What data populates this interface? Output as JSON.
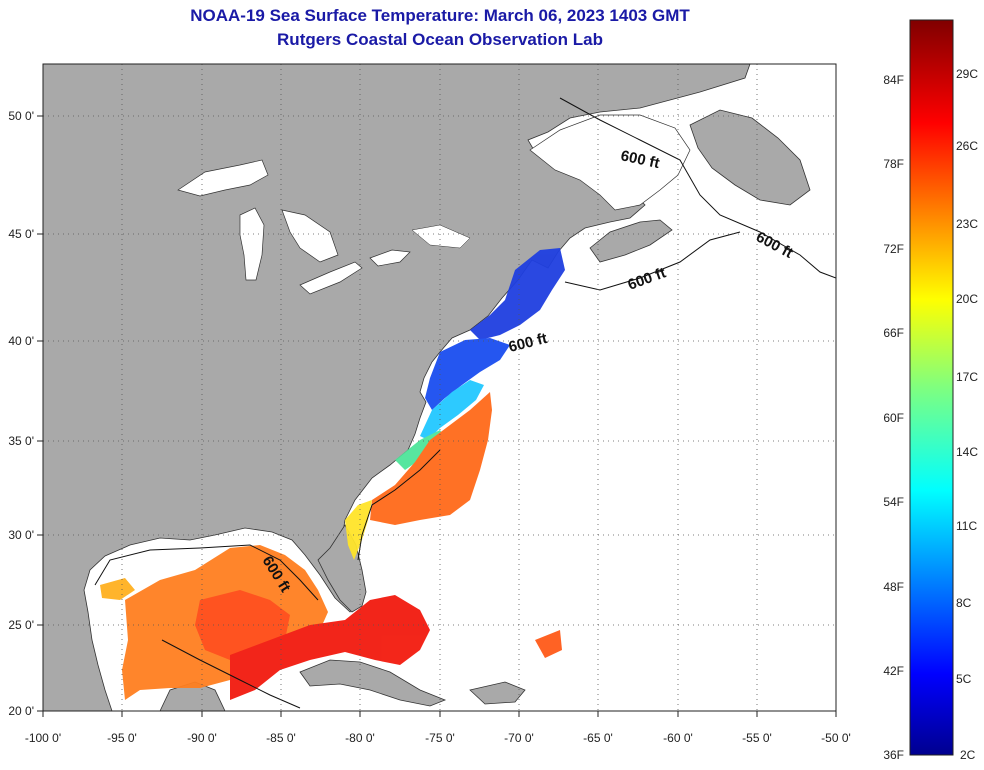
{
  "title": "NOAA-19 Sea Surface Temperature:  March 06, 2023 1403 GMT",
  "subtitle": "Rutgers Coastal Ocean Observation Lab",
  "colors": {
    "land": "#a9a9a9",
    "water": "#ffffff",
    "title": "#1a1aa6"
  },
  "map": {
    "lon_range": [
      -100,
      -50
    ],
    "lat_range": [
      20,
      52
    ],
    "lon_labels": [
      "-100 0'",
      "-95 0'",
      "-90 0'",
      "-85 0'",
      "-80 0'",
      "-75 0'",
      "-70 0'",
      "-65 0'",
      "-60 0'",
      "-55 0'",
      "-50 0'"
    ],
    "lat_labels": [
      "20 0'",
      "25 0'",
      "30 0'",
      "35 0'",
      "40 0'",
      "45 0'",
      "50 0'"
    ],
    "contour_label": "600 ft"
  },
  "colorbar": {
    "f_labels": [
      "84F",
      "78F",
      "72F",
      "66F",
      "60F",
      "54F",
      "48F",
      "42F",
      "36F"
    ],
    "c_labels": [
      "29C",
      "26C",
      "23C",
      "20C",
      "17C",
      "14C",
      "11C",
      "8C",
      "5C",
      "2C"
    ]
  }
}
